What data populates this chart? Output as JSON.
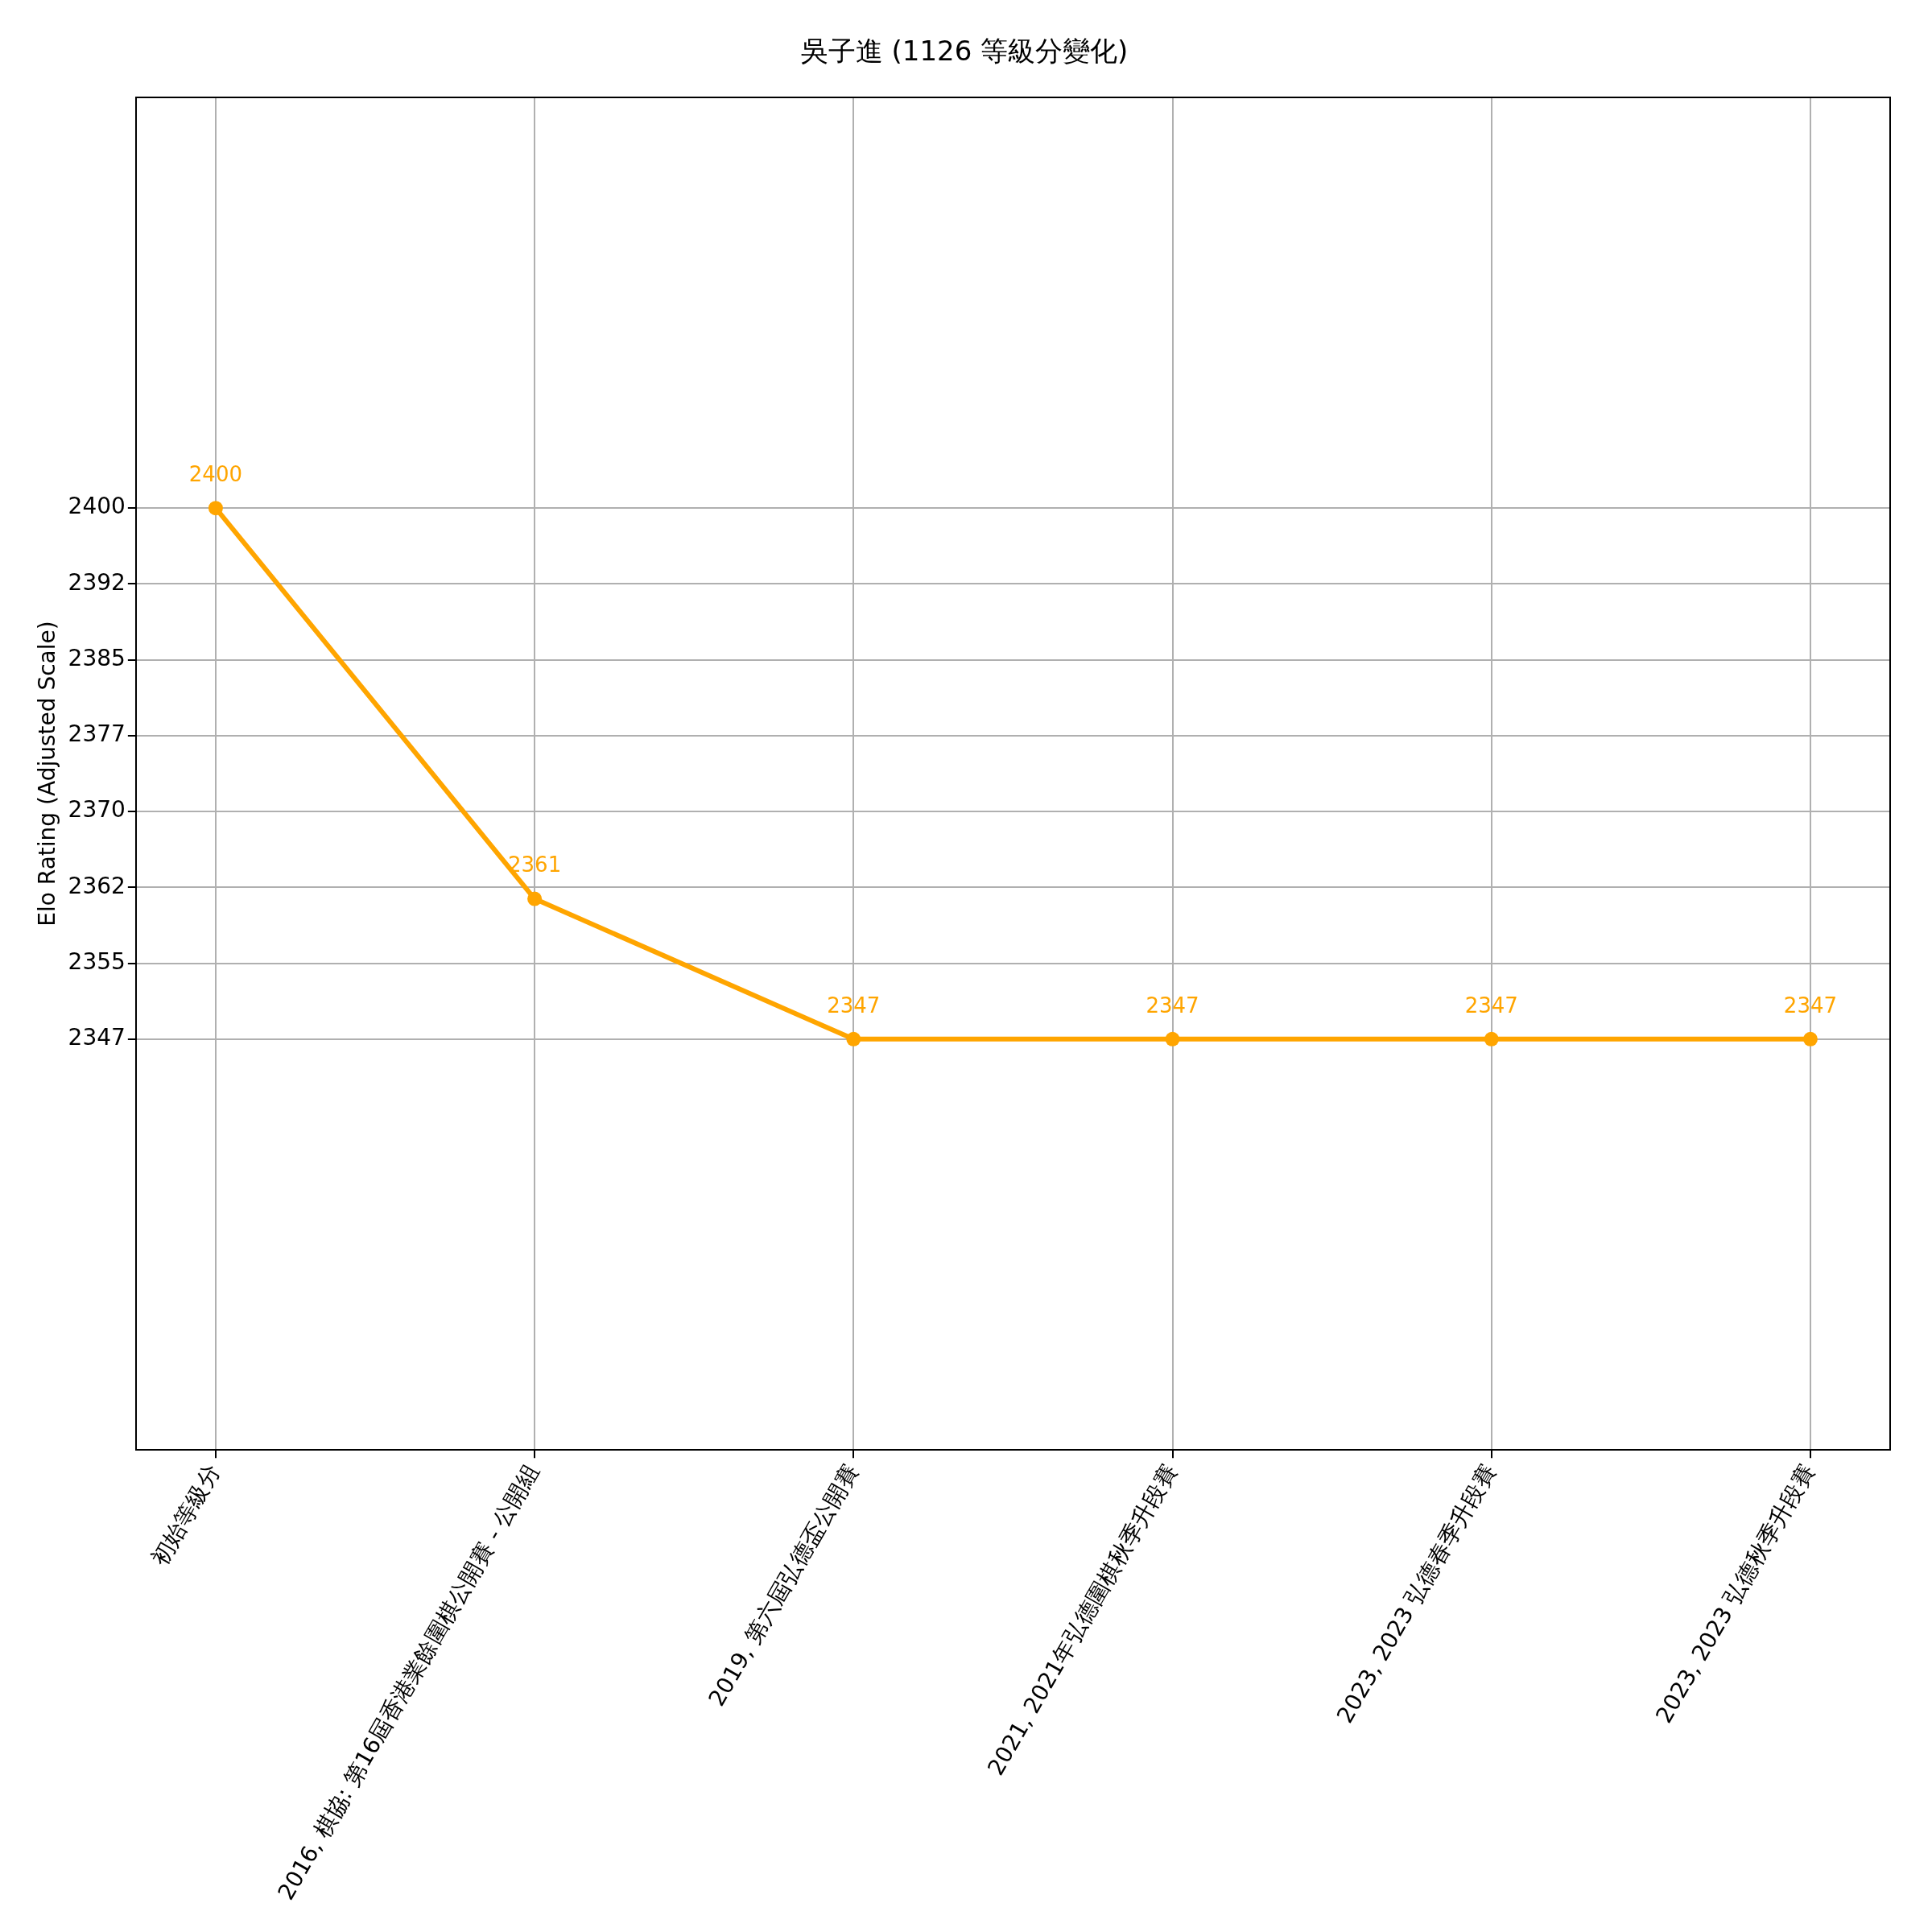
{
  "chart_data": {
    "type": "line",
    "title": "吳子進 (1126 等級分變化)",
    "ylabel": "Elo Rating (Adjusted Scale)",
    "categories": [
      "初始等級分",
      "2016, 棋協: 第16屆香港業餘圍棋公開賽 - 公開組",
      "2019, 第六屆弘德盃公開賽",
      "2021, 2021年弘德圍棋秋季升段賽",
      "2023, 2023 弘德春季升段賽",
      "2023, 2023 弘德秋季升段賽"
    ],
    "series": [
      {
        "color": "#ffa500",
        "values": [
          2400,
          2361,
          2347,
          2347,
          2347,
          2347
        ]
      }
    ],
    "ylim": [
      2306,
      2441
    ],
    "yticks": [
      2347,
      {
        "value": 2354.571,
        "label": "2355"
      },
      {
        "value": 2362.143,
        "label": "2362"
      },
      {
        "value": 2369.714,
        "label": "2370"
      },
      {
        "value": 2377.286,
        "label": "2377"
      },
      {
        "value": 2384.857,
        "label": "2385"
      },
      {
        "value": 2392.429,
        "label": "2392"
      },
      2400
    ],
    "grid": true,
    "marker": "circle",
    "line_style": "solid",
    "data_labels": true
  }
}
